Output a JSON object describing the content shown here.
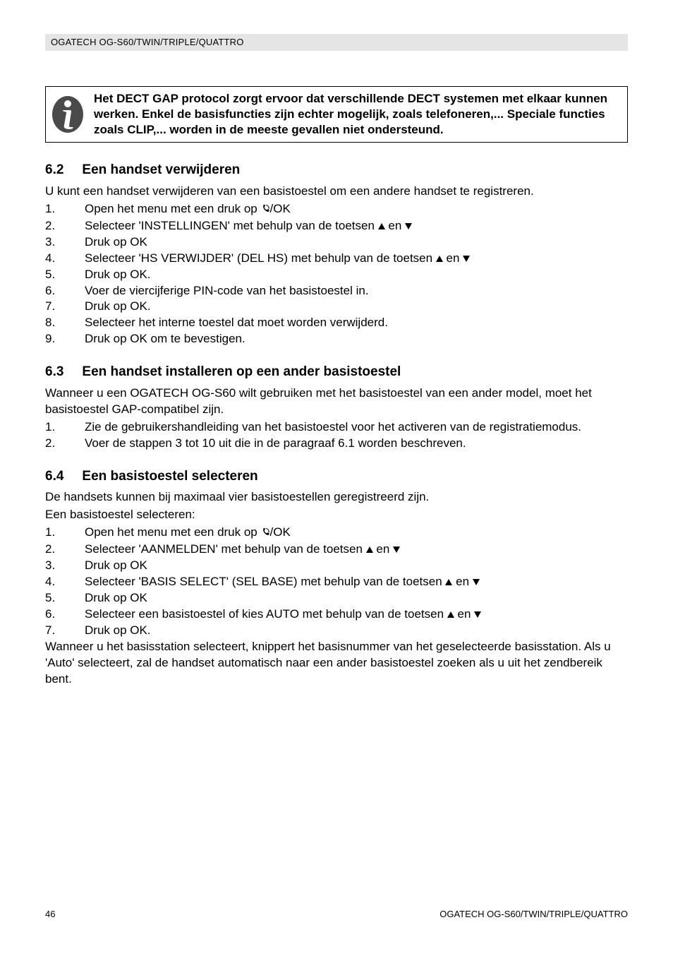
{
  "header": {
    "model_line": "OGATECH OG-S60/TWIN/TRIPLE/QUATTRO"
  },
  "info_box": {
    "text": "Het DECT GAP protocol zorgt ervoor dat verschillende DECT systemen met elkaar kunnen werken. Enkel de basisfuncties zijn echter mogelijk, zoals telefoneren,... Speciale functies zoals CLIP,... worden in de meeste gevallen niet ondersteund."
  },
  "sections": {
    "s62": {
      "num": "6.2",
      "title": "Een handset verwijderen",
      "intro": "U kunt een handset verwijderen van een basistoestel om een andere handset te registreren.",
      "steps": [
        {
          "n": "1.",
          "pre": "Open het menu met een druk op ",
          "icon": "phone-ok",
          "post": "/OK"
        },
        {
          "n": "2.",
          "pre": "Selecteer 'INSTELLINGEN' met behulp van de toetsen ",
          "icon": "arrows",
          "post": ""
        },
        {
          "n": "3.",
          "t": "Druk op OK"
        },
        {
          "n": "4.",
          "pre": "Selecteer 'HS VERWIJDER' (DEL HS) met behulp van de toetsen ",
          "icon": "arrows",
          "post": ""
        },
        {
          "n": "5.",
          "t": "Druk op OK."
        },
        {
          "n": "6.",
          "t": "Voer de viercijferige PIN-code van het basistoestel in."
        },
        {
          "n": "7.",
          "t": "Druk op OK."
        },
        {
          "n": "8.",
          "t": "Selecteer het interne toestel dat moet worden verwijderd."
        },
        {
          "n": "9.",
          "t": "Druk op OK om te bevestigen."
        }
      ]
    },
    "s63": {
      "num": "6.3",
      "title": "Een handset installeren op een ander basistoestel",
      "intro": "Wanneer u een OGATECH OG-S60 wilt gebruiken met het basistoestel van een ander model, moet het basistoestel GAP-compatibel zijn.",
      "steps": [
        {
          "n": "1.",
          "t": "Zie de gebruikershandleiding van het basistoestel voor het activeren van de registratiemodus."
        },
        {
          "n": "2.",
          "t": "Voer de stappen 3 tot 10 uit die in de paragraaf 6.1 worden beschreven."
        }
      ]
    },
    "s64": {
      "num": "6.4",
      "title": "Een basistoestel selecteren",
      "intro1": "De handsets kunnen bij maximaal vier basistoestellen geregistreerd zijn.",
      "intro2": "Een basistoestel selecteren:",
      "steps": [
        {
          "n": "1.",
          "pre": "Open het menu met een druk op ",
          "icon": "phone-ok",
          "post": "/OK"
        },
        {
          "n": "2.",
          "pre": "Selecteer 'AANMELDEN' met behulp van de toetsen ",
          "icon": "arrows",
          "post": ""
        },
        {
          "n": "3.",
          "t": "Druk op OK"
        },
        {
          "n": "4.",
          "pre": "Selecteer 'BASIS SELECT' (SEL BASE) met behulp van de toetsen ",
          "icon": "arrows",
          "post": ""
        },
        {
          "n": "5.",
          "t": "Druk op OK"
        },
        {
          "n": "6.",
          "pre": "Selecteer een basistoestel of kies AUTO met behulp van de toetsen ",
          "icon": "arrows",
          "post": ""
        },
        {
          "n": "7.",
          "t": "Druk op OK."
        }
      ],
      "outro": "Wanneer u het basisstation selecteert, knippert het basisnummer van het geselecteerde basisstation. Als u 'Auto' selecteert, zal de handset automatisch naar een ander basistoestel zoeken als u uit het zendbereik bent."
    }
  },
  "arrow_sep": " en ",
  "footer": {
    "page": "46",
    "model": "OGATECH OG-S60/TWIN/TRIPLE/QUATTRO"
  },
  "colors": {
    "text": "#000000",
    "header_bg": "#e5e5e5",
    "page_bg": "#ffffff"
  }
}
